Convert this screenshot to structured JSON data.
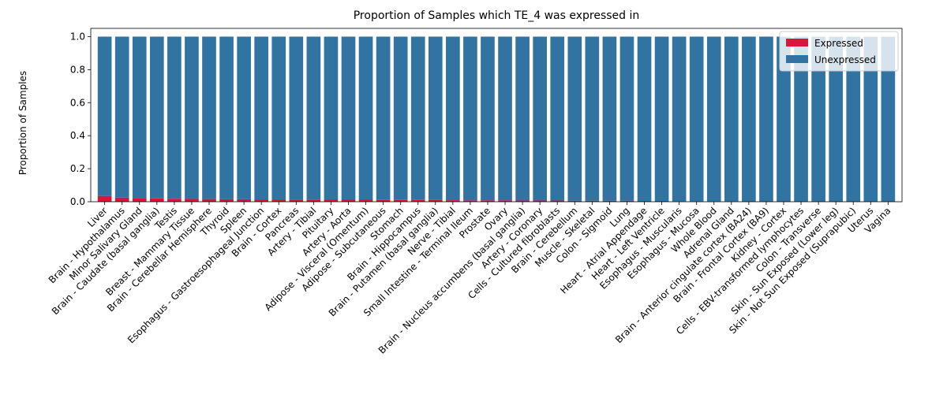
{
  "chart_data": {
    "type": "bar",
    "stacked": true,
    "title": "Proportion of Samples which TE_4 was expressed in",
    "xlabel": "",
    "ylabel": "Proportion of Samples",
    "ylim": [
      0,
      1.05
    ],
    "yticks": [
      "0.0",
      "0.2",
      "0.4",
      "0.6",
      "0.8",
      "1.0"
    ],
    "legend_position": "top-right",
    "categories": [
      "Liver",
      "Brain - Hypothalamus",
      "Minor Salivary Gland",
      "Brain - Caudate (basal ganglia)",
      "Testis",
      "Breast - Mammary Tissue",
      "Brain - Cerebellar Hemisphere",
      "Thyroid",
      "Spleen",
      "Esophagus - Gastroesophageal Junction",
      "Brain - Cortex",
      "Pancreas",
      "Artery - Tibial",
      "Pituitary",
      "Artery - Aorta",
      "Adipose - Visceral (Omentum)",
      "Adipose - Subcutaneous",
      "Stomach",
      "Brain - Hippocampus",
      "Brain - Putamen (basal ganglia)",
      "Nerve - Tibial",
      "Small Intestine - Terminal Ileum",
      "Prostate",
      "Ovary",
      "Brain - Nucleus accumbens (basal ganglia)",
      "Artery - Coronary",
      "Cells - Cultured fibroblasts",
      "Brain - Cerebellum",
      "Muscle - Skeletal",
      "Colon - Sigmoid",
      "Lung",
      "Heart - Atrial Appendage",
      "Heart - Left Ventricle",
      "Esophagus - Muscularis",
      "Esophagus - Mucosa",
      "Whole Blood",
      "Adrenal Gland",
      "Brain - Anterior cingulate cortex (BA24)",
      "Brain - Frontal Cortex (BA9)",
      "Kidney - Cortex",
      "Cells - EBV-transformed lymphocytes",
      "Colon - Transverse",
      "Skin - Sun Exposed (Lower leg)",
      "Skin - Not Sun Exposed (Suprapubic)",
      "Uterus",
      "Vagina"
    ],
    "series": [
      {
        "name": "Expressed",
        "color": "#dc143c",
        "values": [
          0.035,
          0.025,
          0.022,
          0.02,
          0.018,
          0.017,
          0.016,
          0.015,
          0.015,
          0.014,
          0.014,
          0.013,
          0.013,
          0.012,
          0.012,
          0.012,
          0.011,
          0.011,
          0.011,
          0.01,
          0.009,
          0.008,
          0.008,
          0.008,
          0.007,
          0.007,
          0.007,
          0.006,
          0.006,
          0.006,
          0.006,
          0.005,
          0.005,
          0.004,
          0.003,
          0.003,
          0.003,
          0.0,
          0.0,
          0.0,
          0.0,
          0.0,
          0.0,
          0.0,
          0.0,
          0.0
        ]
      },
      {
        "name": "Unexpressed",
        "color": "#3274a1",
        "values": [
          0.965,
          0.975,
          0.978,
          0.98,
          0.982,
          0.983,
          0.984,
          0.985,
          0.985,
          0.986,
          0.986,
          0.987,
          0.987,
          0.988,
          0.988,
          0.988,
          0.989,
          0.989,
          0.989,
          0.99,
          0.991,
          0.992,
          0.992,
          0.992,
          0.993,
          0.993,
          0.993,
          0.994,
          0.994,
          0.994,
          0.994,
          0.995,
          0.995,
          0.996,
          0.997,
          0.997,
          0.997,
          1.0,
          1.0,
          1.0,
          1.0,
          1.0,
          1.0,
          1.0,
          1.0,
          1.0
        ]
      }
    ]
  }
}
